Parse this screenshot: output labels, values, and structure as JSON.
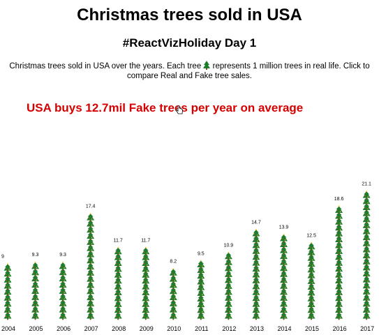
{
  "title": "Christmas trees sold in USA",
  "subtitle": "#ReactVizHoliday Day 1",
  "description_before": "Christmas trees sold in USA over the years. Each tree",
  "description_after": "represents 1 million trees in real life. Click to compare Real and Fake tree sales.",
  "headline": "USA buys 12.7mil Fake trees per year on average",
  "colors": {
    "headline": "#d50000",
    "tree_green": "#1e7d2c",
    "tree_trunk": "#7a4a1c"
  },
  "icons": {
    "tree": "christmas-tree-icon",
    "cursor": "hand-pointer-icon"
  },
  "chart_data": {
    "type": "bar",
    "unit": "million trees",
    "categories": [
      "2004",
      "2005",
      "2006",
      "2007",
      "2008",
      "2009",
      "2010",
      "2011",
      "2012",
      "2013",
      "2014",
      "2015",
      "2016",
      "2017"
    ],
    "values": [
      9,
      9.3,
      9.3,
      17.4,
      11.7,
      11.7,
      8.2,
      9.5,
      10.9,
      14.7,
      13.9,
      12.5,
      18.6,
      21.1
    ],
    "labels": [
      "9",
      "9.3",
      "9.3",
      "17.4",
      "11.7",
      "11.7",
      "8.2",
      "9.5",
      "10.9",
      "14.7",
      "13.9",
      "12.5",
      "18.6",
      "21.1"
    ],
    "series": [
      {
        "values": [
          9,
          9.3,
          9.3,
          17.4,
          11.7,
          11.7,
          8.2,
          9.5,
          10.9,
          14.7,
          13.9,
          12.5,
          18.6,
          21.1
        ]
      }
    ]
  }
}
